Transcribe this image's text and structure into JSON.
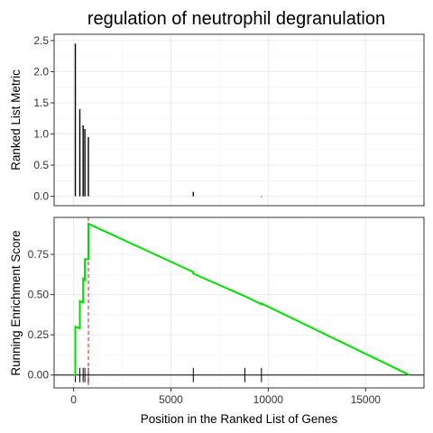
{
  "chart_data": {
    "type": "gsea-enrichment-plot",
    "title": "regulation of neutrophil degranulation",
    "panels": [
      {
        "id": "ranked-list",
        "type": "bar",
        "ylabel": "Ranked List Metric",
        "xlim": [
          -1000,
          18000
        ],
        "ylim": [
          -0.15,
          2.6
        ],
        "yticks": [
          0.0,
          0.5,
          1.0,
          1.5,
          2.0,
          2.5
        ],
        "ytick_labels": [
          "0.0",
          "0.5",
          "1.0",
          "1.5",
          "2.0",
          "2.5"
        ],
        "grid": true,
        "bars": [
          {
            "x": 90,
            "value": 2.45
          },
          {
            "x": 320,
            "value": 1.4
          },
          {
            "x": 490,
            "value": 1.14
          },
          {
            "x": 580,
            "value": 1.08
          },
          {
            "x": 760,
            "value": 0.95
          },
          {
            "x": 6150,
            "value": 0.07
          },
          {
            "x": 9650,
            "value": -0.01
          }
        ]
      },
      {
        "id": "running-es",
        "type": "line",
        "xlabel": "Position in the Ranked List of Genes",
        "ylabel": "Running Enrichment Score",
        "xlim": [
          -1000,
          18000
        ],
        "ylim": [
          -0.08,
          0.98
        ],
        "xticks": [
          0,
          5000,
          10000,
          15000
        ],
        "xtick_labels": [
          "0",
          "5000",
          "10000",
          "15000"
        ],
        "yticks": [
          0.0,
          0.25,
          0.5,
          0.75
        ],
        "ytick_labels": [
          "0.00",
          "0.25",
          "0.50",
          "0.75"
        ],
        "grid": true,
        "line_color": "#00e000",
        "series": [
          {
            "x": [
              0,
              90,
              90,
              320,
              320,
              490,
              490,
              580,
              580,
              760,
              760,
              6150,
              6150,
              8800,
              8800,
              9650,
              9650,
              17250
            ],
            "y": [
              0.0,
              0.0,
              0.3,
              0.29,
              0.46,
              0.45,
              0.6,
              0.59,
              0.72,
              0.72,
              0.94,
              0.64,
              0.63,
              0.49,
              0.49,
              0.44,
              0.445,
              0.0
            ]
          }
        ],
        "peak_marker": {
          "x": 760,
          "color": "#cc0000",
          "style": "dashed"
        },
        "zero_line": 0.0,
        "hit_positions": [
          90,
          320,
          490,
          580,
          760,
          6150,
          8800,
          9650
        ]
      }
    ]
  }
}
